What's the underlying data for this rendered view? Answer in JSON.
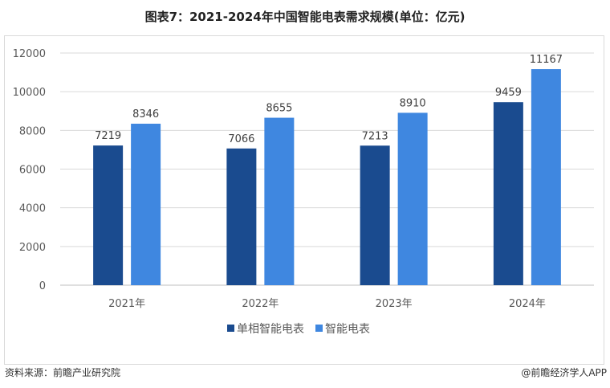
{
  "title": "图表7：2021-2024年中国智能电表需求规模(单位：亿元)",
  "source": "资料来源：前瞻产业研究院",
  "credit": "@前瞻经济学人APP",
  "colors": {
    "series1": "#1a4b8f",
    "series2": "#3f87e0"
  },
  "chart_data": {
    "type": "bar",
    "title": "图表7：2021-2024年中国智能电表需求规模(单位：亿元)",
    "categories": [
      "2021年",
      "2022年",
      "2023年",
      "2024年"
    ],
    "series": [
      {
        "name": "单相智能电表",
        "values": [
          7219,
          7066,
          7213,
          9459
        ]
      },
      {
        "name": "智能电表",
        "values": [
          8346,
          8655,
          8910,
          11167
        ]
      }
    ],
    "yticks": [
      0,
      2000,
      4000,
      6000,
      8000,
      10000,
      12000
    ],
    "ylim": [
      0,
      12000
    ],
    "grid": true,
    "legend": "bottom",
    "xlabel": "",
    "ylabel": ""
  }
}
